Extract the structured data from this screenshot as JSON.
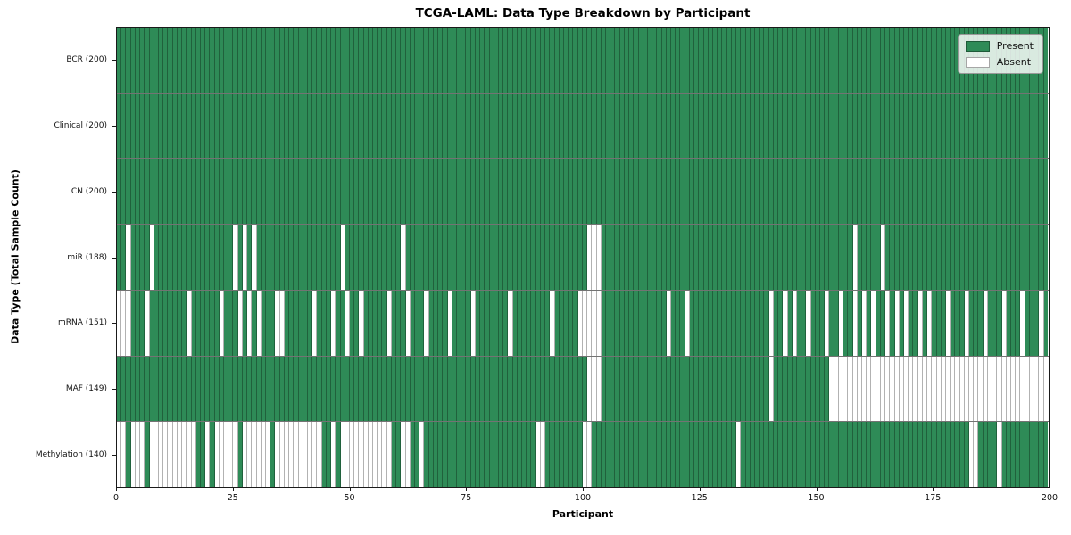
{
  "chart_data": {
    "type": "heatmap",
    "title": "TCGA-LAML: Data Type Breakdown by Participant",
    "xlabel": "Participant",
    "ylabel": "Data Type (Total Sample Count)",
    "x_range": [
      0,
      200
    ],
    "x_ticks": [
      0,
      25,
      50,
      75,
      100,
      125,
      150,
      175,
      200
    ],
    "n_participants": 200,
    "grid": "per-cell borders, dark row separators",
    "legend_position": "upper right",
    "colors": {
      "present": "#2e8b57",
      "absent": "#ffffff",
      "cell_border": "rgba(0,0,0,0.30)",
      "spine": "#1a1a1a"
    },
    "legend": [
      {
        "label": "Present",
        "color": "#2e8b57"
      },
      {
        "label": "Absent",
        "color": "#ffffff"
      }
    ],
    "rows": [
      {
        "data_type": "BCR",
        "label": "BCR (200)",
        "present_count": 200,
        "absent_participants": []
      },
      {
        "data_type": "Clinical",
        "label": "Clinical (200)",
        "present_count": 200,
        "absent_participants": []
      },
      {
        "data_type": "CN",
        "label": "CN (200)",
        "present_count": 200,
        "absent_participants": []
      },
      {
        "data_type": "miR",
        "label": "miR (188)",
        "present_count": 188,
        "absent_participants": [
          2,
          7,
          25,
          27,
          29,
          48,
          61,
          101,
          102,
          103,
          158,
          164
        ]
      },
      {
        "data_type": "mRNA",
        "label": "mRNA (151)",
        "present_count": 151,
        "absent_participants": [
          0,
          1,
          2,
          6,
          15,
          22,
          26,
          28,
          30,
          34,
          35,
          42,
          46,
          49,
          52,
          58,
          62,
          66,
          71,
          76,
          84,
          93,
          99,
          100,
          101,
          102,
          103,
          118,
          122,
          140,
          143,
          145,
          148,
          152,
          155,
          158,
          160,
          162,
          165,
          167,
          169,
          172,
          174,
          178,
          182,
          186,
          190,
          194,
          198
        ]
      },
      {
        "data_type": "MAF",
        "label": "MAF (149)",
        "present_count": 149,
        "absent_participants": [
          101,
          102,
          103,
          140,
          153,
          154,
          155,
          156,
          157,
          158,
          159,
          160,
          161,
          162,
          163,
          164,
          165,
          166,
          167,
          168,
          169,
          170,
          171,
          172,
          173,
          174,
          175,
          176,
          177,
          178,
          179,
          180,
          181,
          182,
          183,
          184,
          185,
          186,
          187,
          188,
          189,
          190,
          191,
          192,
          193,
          194,
          195,
          196,
          197,
          198,
          199
        ]
      },
      {
        "data_type": "Methylation",
        "label": "Methylation (140)",
        "present_count": 140,
        "absent_participants": [
          0,
          1,
          3,
          4,
          5,
          7,
          8,
          9,
          10,
          11,
          12,
          13,
          14,
          15,
          16,
          19,
          21,
          22,
          23,
          24,
          25,
          27,
          28,
          29,
          30,
          31,
          32,
          34,
          35,
          36,
          37,
          38,
          39,
          40,
          41,
          42,
          43,
          46,
          48,
          49,
          50,
          51,
          52,
          53,
          54,
          55,
          56,
          57,
          58,
          61,
          62,
          65,
          90,
          91,
          100,
          101,
          133,
          183,
          184,
          189
        ]
      }
    ]
  }
}
